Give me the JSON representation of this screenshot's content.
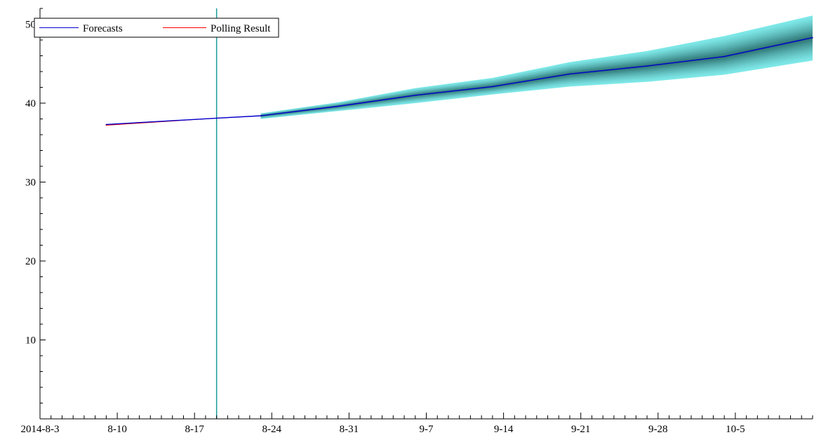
{
  "chart_data": {
    "type": "line",
    "title": "",
    "xlabel": "",
    "ylabel": "",
    "x_axis": {
      "kind": "date",
      "min": "2014-08-03",
      "max": "2014-10-12",
      "tick_labels": [
        "2014-8-3",
        "8-10",
        "8-17",
        "8-24",
        "8-31",
        "9-7",
        "9-14",
        "9-21",
        "9-28",
        "10-5"
      ],
      "tick_dates": [
        "2014-08-03",
        "2014-08-10",
        "2014-08-17",
        "2014-08-24",
        "2014-08-31",
        "2014-09-07",
        "2014-09-14",
        "2014-09-21",
        "2014-09-28",
        "2014-10-05"
      ]
    },
    "y_axis": {
      "min": 0,
      "max": 52,
      "ticks": [
        10,
        20,
        30,
        40,
        50
      ],
      "tick_labels": [
        "10",
        "20",
        "30",
        "40",
        "50"
      ]
    },
    "grid": false,
    "legend": {
      "position": "top-left",
      "entries": [
        {
          "label": "Forecasts",
          "color": "#0000cc"
        },
        {
          "label": "Polling Result",
          "color": "#ff0000"
        }
      ]
    },
    "vertical_marker": {
      "date": "2014-08-19",
      "color": "#1a9a9a"
    },
    "series": [
      {
        "name": "Forecasts",
        "color": "#0000cc",
        "x": [
          "2014-08-09",
          "2014-08-19",
          "2014-08-23",
          "2014-08-30",
          "2014-09-06",
          "2014-09-13",
          "2014-09-20",
          "2014-09-27",
          "2014-10-04",
          "2014-10-12"
        ],
        "y": [
          37.3,
          38.1,
          38.4,
          39.6,
          41.0,
          42.1,
          43.7,
          44.7,
          45.9,
          48.3
        ]
      },
      {
        "name": "Polling Result",
        "color": "#ff0000",
        "x": [
          "2014-08-09",
          "2014-08-19",
          "2014-08-23"
        ],
        "y": [
          37.2,
          38.1,
          38.4
        ]
      }
    ],
    "forecast_band": {
      "color_outer": "#7fe8e8",
      "color_inner": "#2a6f6f",
      "x": [
        "2014-08-23",
        "2014-08-30",
        "2014-09-06",
        "2014-09-13",
        "2014-09-20",
        "2014-09-27",
        "2014-10-04",
        "2014-10-12"
      ],
      "lower": [
        38.0,
        39.0,
        40.0,
        41.1,
        42.1,
        42.7,
        43.6,
        45.4
      ],
      "upper": [
        38.7,
        40.1,
        41.9,
        43.2,
        45.2,
        46.6,
        48.5,
        51.1
      ]
    }
  }
}
